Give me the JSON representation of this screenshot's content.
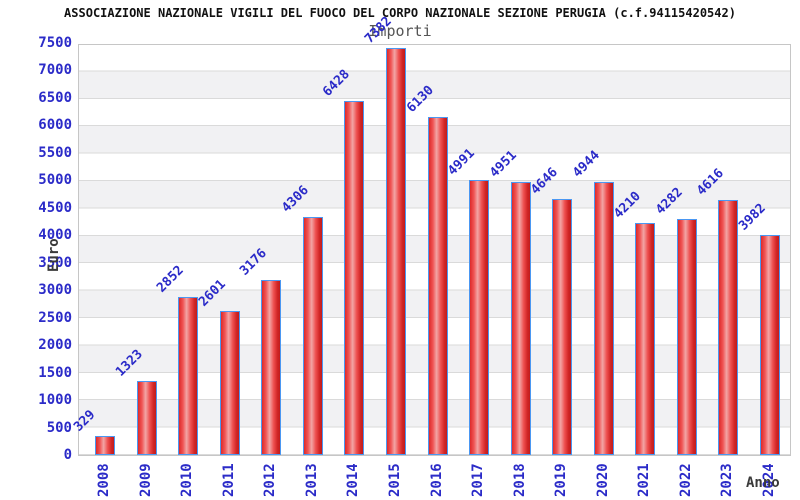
{
  "chart_data": {
    "type": "bar",
    "title": "ASSOCIAZIONE NAZIONALE VIGILI DEL FUOCO DEL CORPO NAZIONALE SEZIONE PERUGIA (c.f.94115420542)",
    "subtitle": "Importi",
    "xlabel": "Anno",
    "ylabel": "Euro",
    "categories": [
      "2008",
      "2009",
      "2010",
      "2011",
      "2012",
      "2013",
      "2014",
      "2015",
      "2016",
      "2017",
      "2018",
      "2019",
      "2020",
      "2021",
      "2022",
      "2023",
      "2024"
    ],
    "values": [
      329,
      1323,
      2852,
      2601,
      3176,
      4306,
      6428,
      7382,
      6130,
      4991,
      4951,
      4646,
      4944,
      4210,
      4282,
      4616,
      3982
    ],
    "ylim": [
      0,
      7500
    ],
    "ytick_step": 500,
    "grid": "horizontal-bands-alternating",
    "legend": "none",
    "value_labels": "rotated-45-above-bars",
    "x_tick_rotation": -90,
    "colors": {
      "bar_edge": "#4a97f2",
      "bar_fill_dark": "#c11d1d",
      "bar_fill_light": "#f2a6a6",
      "axis_text": "#2b2bc8",
      "title_text": "#111111",
      "subtitle_text": "#555555",
      "axis_title_text": "#3a3a3a",
      "band_alt": "#f1f1f3",
      "gridline": "#dadada"
    }
  }
}
